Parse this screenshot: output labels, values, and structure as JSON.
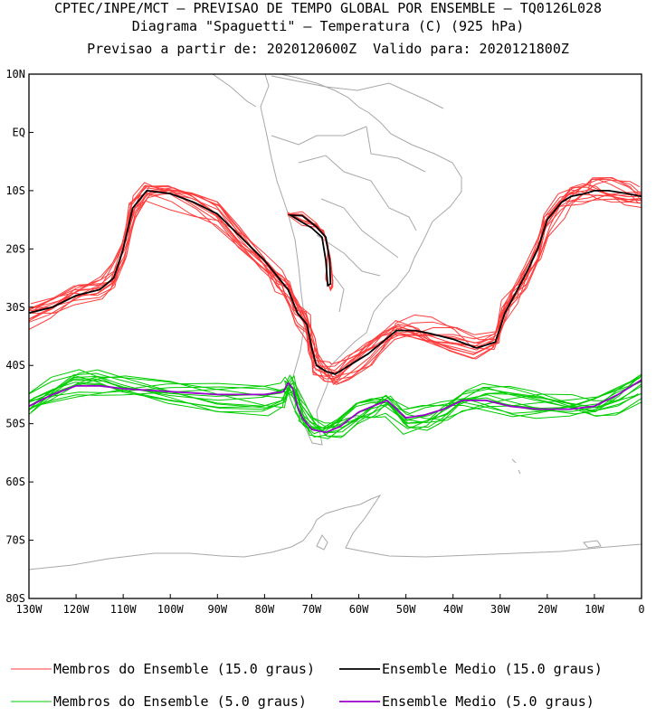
{
  "header": {
    "line1": "CPTEC/INPE/MCT — PREVISAO DE TEMPO GLOBAL POR ENSEMBLE — TQ0126L028",
    "line2": "Diagrama \"Spaguetti\" — Temperatura (C) (925 hPa)",
    "line3": "Previsao a partir de: 2020120600Z  Valido para: 2020121800Z"
  },
  "chart_data": {
    "type": "line",
    "title": "Diagrama \"Spaguetti\" — Temperatura (C) (925 hPa)",
    "xlim": [
      -130,
      0
    ],
    "ylim": [
      -80,
      10
    ],
    "x_ticks": [
      {
        "value": -130,
        "label": "130W"
      },
      {
        "value": -120,
        "label": "120W"
      },
      {
        "value": -110,
        "label": "110W"
      },
      {
        "value": -100,
        "label": "100W"
      },
      {
        "value": -90,
        "label": "90W"
      },
      {
        "value": -80,
        "label": "80W"
      },
      {
        "value": -70,
        "label": "70W"
      },
      {
        "value": -60,
        "label": "60W"
      },
      {
        "value": -50,
        "label": "50W"
      },
      {
        "value": -40,
        "label": "40W"
      },
      {
        "value": -30,
        "label": "30W"
      },
      {
        "value": -20,
        "label": "20W"
      },
      {
        "value": -10,
        "label": "10W"
      },
      {
        "value": 0,
        "label": "0"
      }
    ],
    "y_ticks": [
      {
        "value": 10,
        "label": "10N"
      },
      {
        "value": 0,
        "label": "EQ"
      },
      {
        "value": -10,
        "label": "10S"
      },
      {
        "value": -20,
        "label": "20S"
      },
      {
        "value": -30,
        "label": "30S"
      },
      {
        "value": -40,
        "label": "40S"
      },
      {
        "value": -50,
        "label": "50S"
      },
      {
        "value": -60,
        "label": "60S"
      },
      {
        "value": -70,
        "label": "70S"
      },
      {
        "value": -80,
        "label": "80S"
      }
    ],
    "series": [
      {
        "name": "Membros do Ensemble (15.0 graus)",
        "color": "#ff3c3c",
        "kind": "members",
        "x": [
          -130,
          -125,
          -120,
          -115,
          -112,
          -110,
          -108,
          -105,
          -100,
          -95,
          -90,
          -85,
          -80,
          -77,
          -75,
          -73,
          -71,
          -70,
          -69,
          -67,
          -65,
          -62,
          -58,
          -55,
          -52,
          -48,
          -45,
          -40,
          -35,
          -31,
          -29,
          -27,
          -25,
          -22,
          -20,
          -17,
          -15,
          -12,
          -10,
          -7,
          -3,
          0
        ],
        "y": [
          -31,
          -30,
          -28,
          -27,
          -25,
          -20,
          -13,
          -10,
          -10.5,
          -12,
          -14,
          -18,
          -22,
          -25,
          -27,
          -31,
          -33,
          -37,
          -40,
          -41,
          -41.5,
          -40,
          -38,
          -36,
          -34,
          -34,
          -34.5,
          -35.5,
          -37,
          -36,
          -31,
          -28,
          -25,
          -20,
          -15,
          -12,
          -11,
          -10.5,
          -10,
          -10,
          -10.5,
          -11
        ]
      },
      {
        "name": "Ensemble Medio (15.0 graus)",
        "color": "#000000",
        "kind": "mean",
        "x": [
          -130,
          -125,
          -120,
          -115,
          -112,
          -110,
          -108,
          -105,
          -100,
          -95,
          -90,
          -85,
          -80,
          -77,
          -75,
          -73,
          -71,
          -70,
          -69,
          -67,
          -65,
          -62,
          -58,
          -55,
          -52,
          -48,
          -45,
          -40,
          -35,
          -31,
          -29,
          -27,
          -25,
          -22,
          -20,
          -17,
          -15,
          -12,
          -10,
          -7,
          -3,
          0
        ],
        "y": [
          -31,
          -30,
          -28,
          -27,
          -25,
          -20,
          -13,
          -10,
          -10.5,
          -12,
          -14,
          -18,
          -22,
          -25,
          -27,
          -31,
          -33,
          -37,
          -40,
          -41,
          -41.5,
          -40,
          -38,
          -36,
          -34,
          -34,
          -34.5,
          -35.5,
          -37,
          -36,
          -31,
          -28,
          -25,
          -20,
          -15,
          -12,
          -11,
          -10.5,
          -10,
          -10,
          -10.5,
          -11
        ]
      },
      {
        "name": "Membros do Ensemble (5.0 graus)",
        "color": "#00cc00",
        "kind": "members",
        "x": [
          -130,
          -125,
          -120,
          -115,
          -110,
          -100,
          -90,
          -80,
          -76,
          -75,
          -74,
          -73,
          -72,
          -70,
          -67,
          -64,
          -60,
          -57,
          -54,
          -50,
          -46,
          -42,
          -38,
          -33,
          -28,
          -22,
          -15,
          -10,
          -5,
          0
        ],
        "y": [
          -47,
          -45,
          -43.5,
          -43.5,
          -44,
          -44.5,
          -45,
          -45,
          -44.5,
          -43,
          -44,
          -47,
          -49,
          -51,
          -51.5,
          -50.5,
          -48,
          -47,
          -46,
          -49,
          -48.5,
          -47.5,
          -46,
          -46,
          -47,
          -47.5,
          -47.5,
          -47,
          -45,
          -42.5
        ]
      },
      {
        "name": "Ensemble Medio (5.0 graus)",
        "color": "#9900cc",
        "kind": "mean",
        "x": [
          -130,
          -125,
          -120,
          -115,
          -110,
          -100,
          -90,
          -80,
          -76,
          -75,
          -74,
          -73,
          -72,
          -70,
          -67,
          -64,
          -60,
          -57,
          -54,
          -50,
          -46,
          -42,
          -38,
          -33,
          -28,
          -22,
          -15,
          -10,
          -5,
          0
        ],
        "y": [
          -47,
          -45,
          -43.5,
          -43.5,
          -44,
          -44.5,
          -45,
          -45,
          -44.5,
          -43,
          -44,
          -47,
          -49,
          -51,
          -51.5,
          -50.5,
          -48,
          -47,
          -46,
          -49,
          -48.5,
          -47.5,
          -46,
          -46,
          -47,
          -47.5,
          -47.5,
          -47,
          -45,
          -42.5
        ]
      }
    ],
    "isolated_contours": [
      {
        "color": "#ff3c3c",
        "kind": "member",
        "x": [
          -75,
          -72,
          -69,
          -67,
          -66,
          -65.5,
          -66,
          -67,
          -66.5,
          -67.5,
          -69,
          -72,
          -75
        ],
        "y": [
          -14,
          -14,
          -16,
          -18,
          -22,
          -26,
          -27,
          -25,
          -20,
          -17,
          -16,
          -15.5,
          -14
        ]
      },
      {
        "color": "#000000",
        "kind": "mean",
        "x": [
          -74.5,
          -72,
          -69,
          -67,
          -66.2,
          -66,
          -66.6,
          -67,
          -67.8,
          -70,
          -72.5,
          -74.5
        ],
        "y": [
          -14.2,
          -14.3,
          -16.2,
          -18,
          -22,
          -26,
          -26.3,
          -22,
          -18,
          -16.4,
          -15.2,
          -14.2
        ]
      }
    ],
    "legend_placement": "bottom",
    "grid": false
  },
  "legend": {
    "items": [
      {
        "label": "Membros do Ensemble (15.0 graus)",
        "color": "#ff3c3c"
      },
      {
        "label": "Ensemble Medio (15.0 graus)",
        "color": "#000000"
      },
      {
        "label": "Membros do Ensemble (5.0 graus)",
        "color": "#00cc00"
      },
      {
        "label": "Ensemble Medio (5.0 graus)",
        "color": "#9900cc"
      }
    ]
  }
}
